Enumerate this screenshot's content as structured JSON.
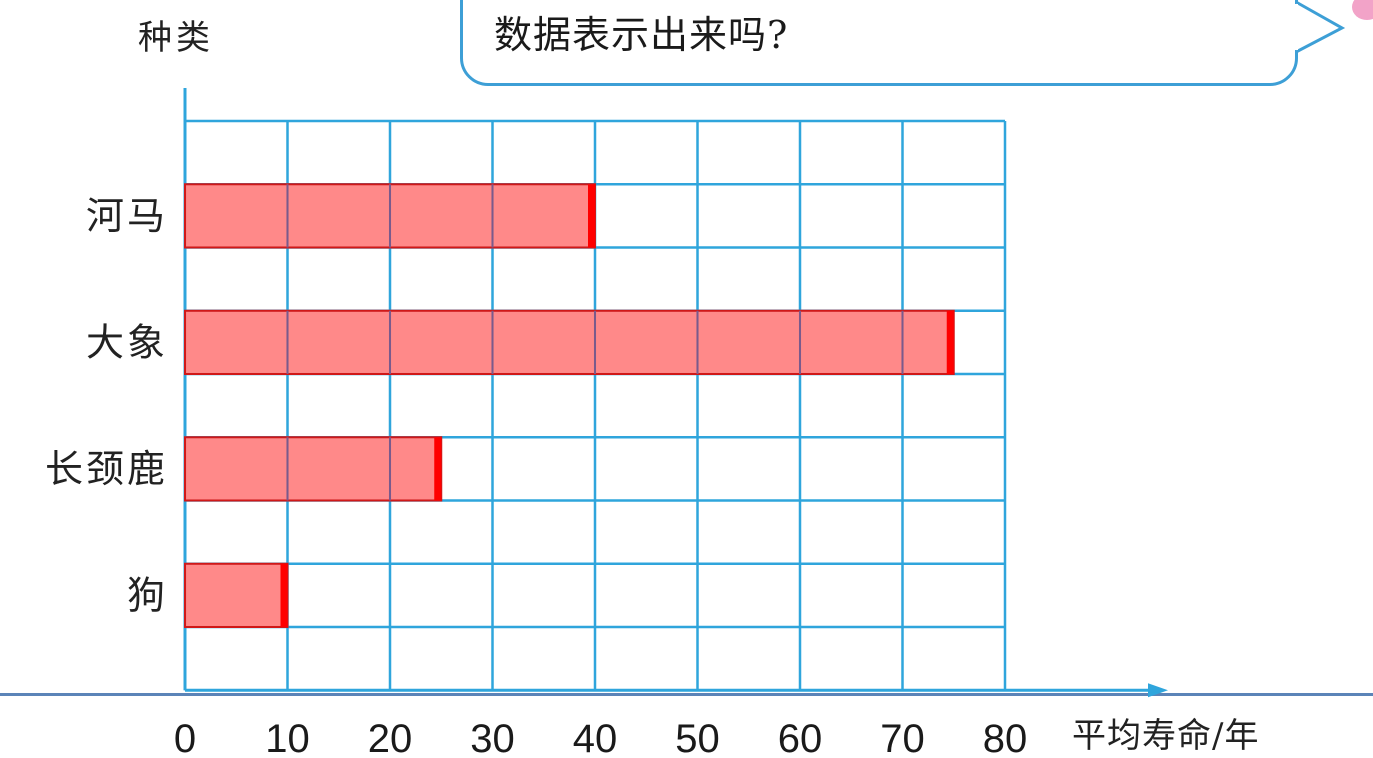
{
  "speech_bubble": {
    "text": "数据表示出来吗?"
  },
  "chart_data": {
    "type": "bar",
    "orientation": "horizontal",
    "title": "",
    "ylabel": "种类",
    "xlabel": "平均寿命/年",
    "categories": [
      "河马",
      "大象",
      "长颈鹿",
      "狗"
    ],
    "values": [
      40,
      75,
      25,
      10
    ],
    "xlim": [
      0,
      80
    ],
    "x_ticks": [
      "0",
      "10",
      "20",
      "30",
      "40",
      "50",
      "60",
      "70",
      "80"
    ],
    "grid": true,
    "colors": {
      "bar_fill": "#ff7f7f",
      "bar_end": "#ff0000",
      "grid": "#2fa5dc",
      "axis": "#2fa5dc"
    }
  }
}
